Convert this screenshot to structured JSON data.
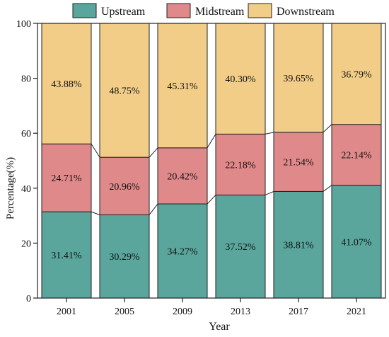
{
  "chart_data": {
    "type": "bar",
    "stacked": true,
    "categories": [
      "2001",
      "2005",
      "2009",
      "2013",
      "2017",
      "2021"
    ],
    "series": [
      {
        "name": "Upstream",
        "color": "#5aa69c",
        "values": [
          31.41,
          30.29,
          34.27,
          37.52,
          38.81,
          41.07
        ]
      },
      {
        "name": "Midstream",
        "color": "#e0898a",
        "values": [
          24.71,
          20.96,
          20.42,
          22.18,
          21.54,
          22.14
        ]
      },
      {
        "name": "Downstream",
        "color": "#f2cd88",
        "values": [
          43.88,
          48.75,
          45.31,
          40.3,
          39.65,
          36.79
        ]
      }
    ],
    "value_labels": [
      [
        "31.41%",
        "30.29%",
        "34.27%",
        "37.52%",
        "38.81%",
        "41.07%"
      ],
      [
        "24.71%",
        "20.96%",
        "20.42%",
        "22.18%",
        "21.54%",
        "22.14%"
      ],
      [
        "43.88%",
        "48.75%",
        "45.31%",
        "40.30%",
        "39.65%",
        "36.79%"
      ]
    ],
    "xlabel": "Year",
    "ylabel": "Percentage(%)",
    "ylim": [
      0,
      100
    ],
    "yticks": [
      0,
      20,
      40,
      60,
      80,
      100
    ],
    "connector_lines": true,
    "legend_position": "top",
    "grid": false
  }
}
